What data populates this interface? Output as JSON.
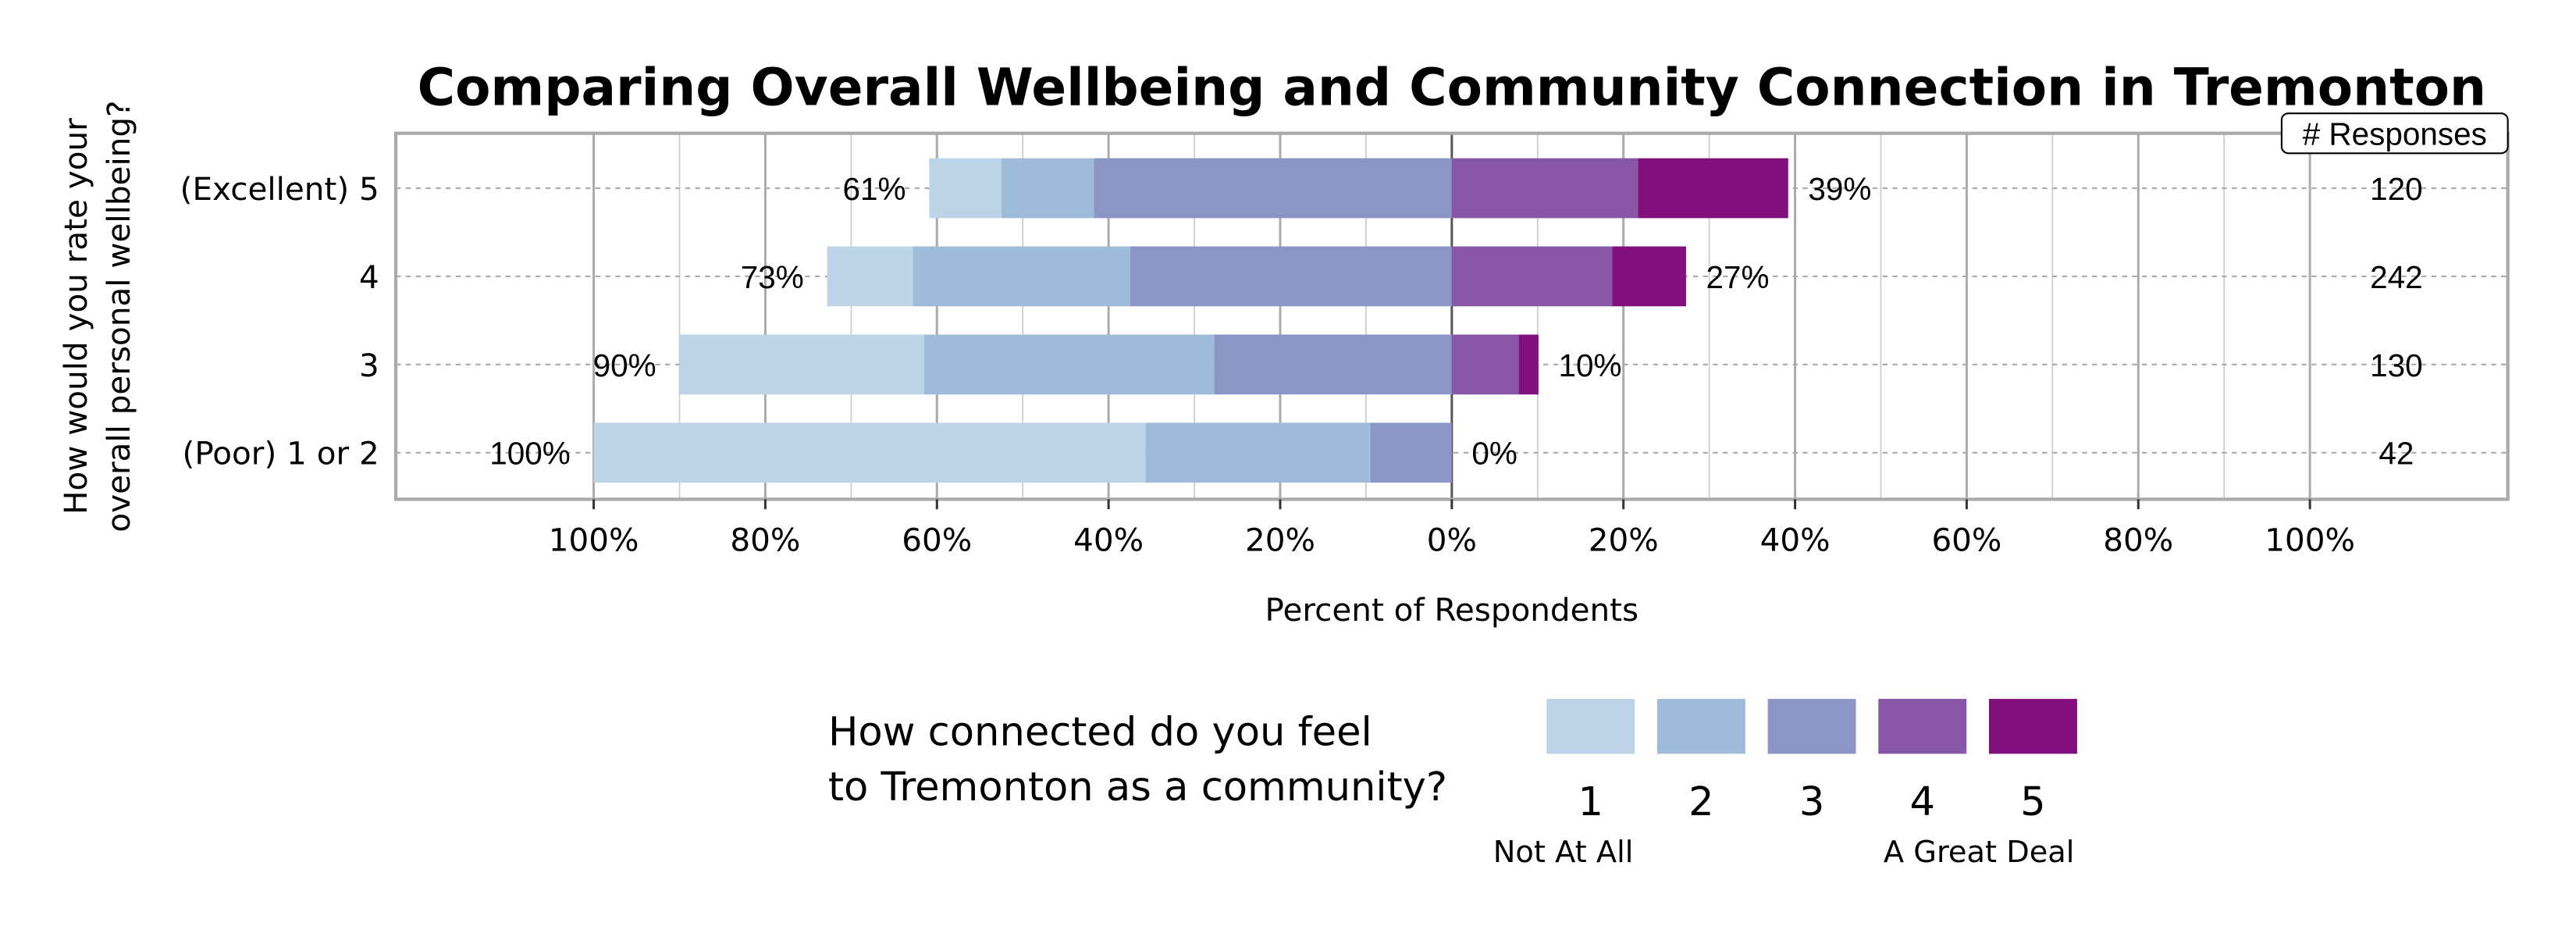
{
  "chart_data": {
    "type": "bar",
    "subtype": "diverging-stacked-horizontal",
    "title": "Comparing Overall Wellbeing and Community Connection in Tremonton",
    "xlabel": "Percent of Respondents",
    "ylabel": "How would you rate your overall personal wellbeing?",
    "ylabel_lines": [
      "How would you rate your",
      "overall personal wellbeing?"
    ],
    "xlim": [
      -100,
      100
    ],
    "x_ticks": [
      "100%",
      "80%",
      "60%",
      "40%",
      "20%",
      "0%",
      "20%",
      "40%",
      "60%",
      "80%",
      "100%"
    ],
    "grid": true,
    "categories": [
      "(Excellent) 5",
      "4",
      "3",
      "(Poor) 1 or 2"
    ],
    "series": [
      {
        "name": "1",
        "color": "#bdd3e7",
        "side": "left",
        "values": [
          8.4,
          10.0,
          28.5,
          64.3
        ]
      },
      {
        "name": "2",
        "color": "#9ebbd9",
        "side": "left",
        "values": [
          10.8,
          25.3,
          33.8,
          26.2
        ]
      },
      {
        "name": "3",
        "color": "#8b96c6",
        "side": "left",
        "values": [
          41.7,
          37.5,
          27.7,
          9.5
        ]
      },
      {
        "name": "4",
        "color": "#8856a7",
        "side": "right",
        "values": [
          21.7,
          18.7,
          7.8,
          0
        ]
      },
      {
        "name": "5",
        "color": "#810f7c",
        "side": "right",
        "values": [
          17.5,
          8.6,
          2.3,
          0
        ]
      }
    ],
    "left_labels": [
      "61%",
      "73%",
      "90%",
      "100%"
    ],
    "right_labels": [
      "39%",
      "27%",
      "10%",
      "0%"
    ],
    "responses_header": "# Responses",
    "responses": [
      "120",
      "242",
      "130",
      "42"
    ],
    "legend": {
      "title_lines": [
        "How connected do you feel",
        "to Tremonton as a community?"
      ],
      "low_label": "Not At All",
      "high_label": "A Great Deal",
      "placement": "bottom"
    }
  }
}
